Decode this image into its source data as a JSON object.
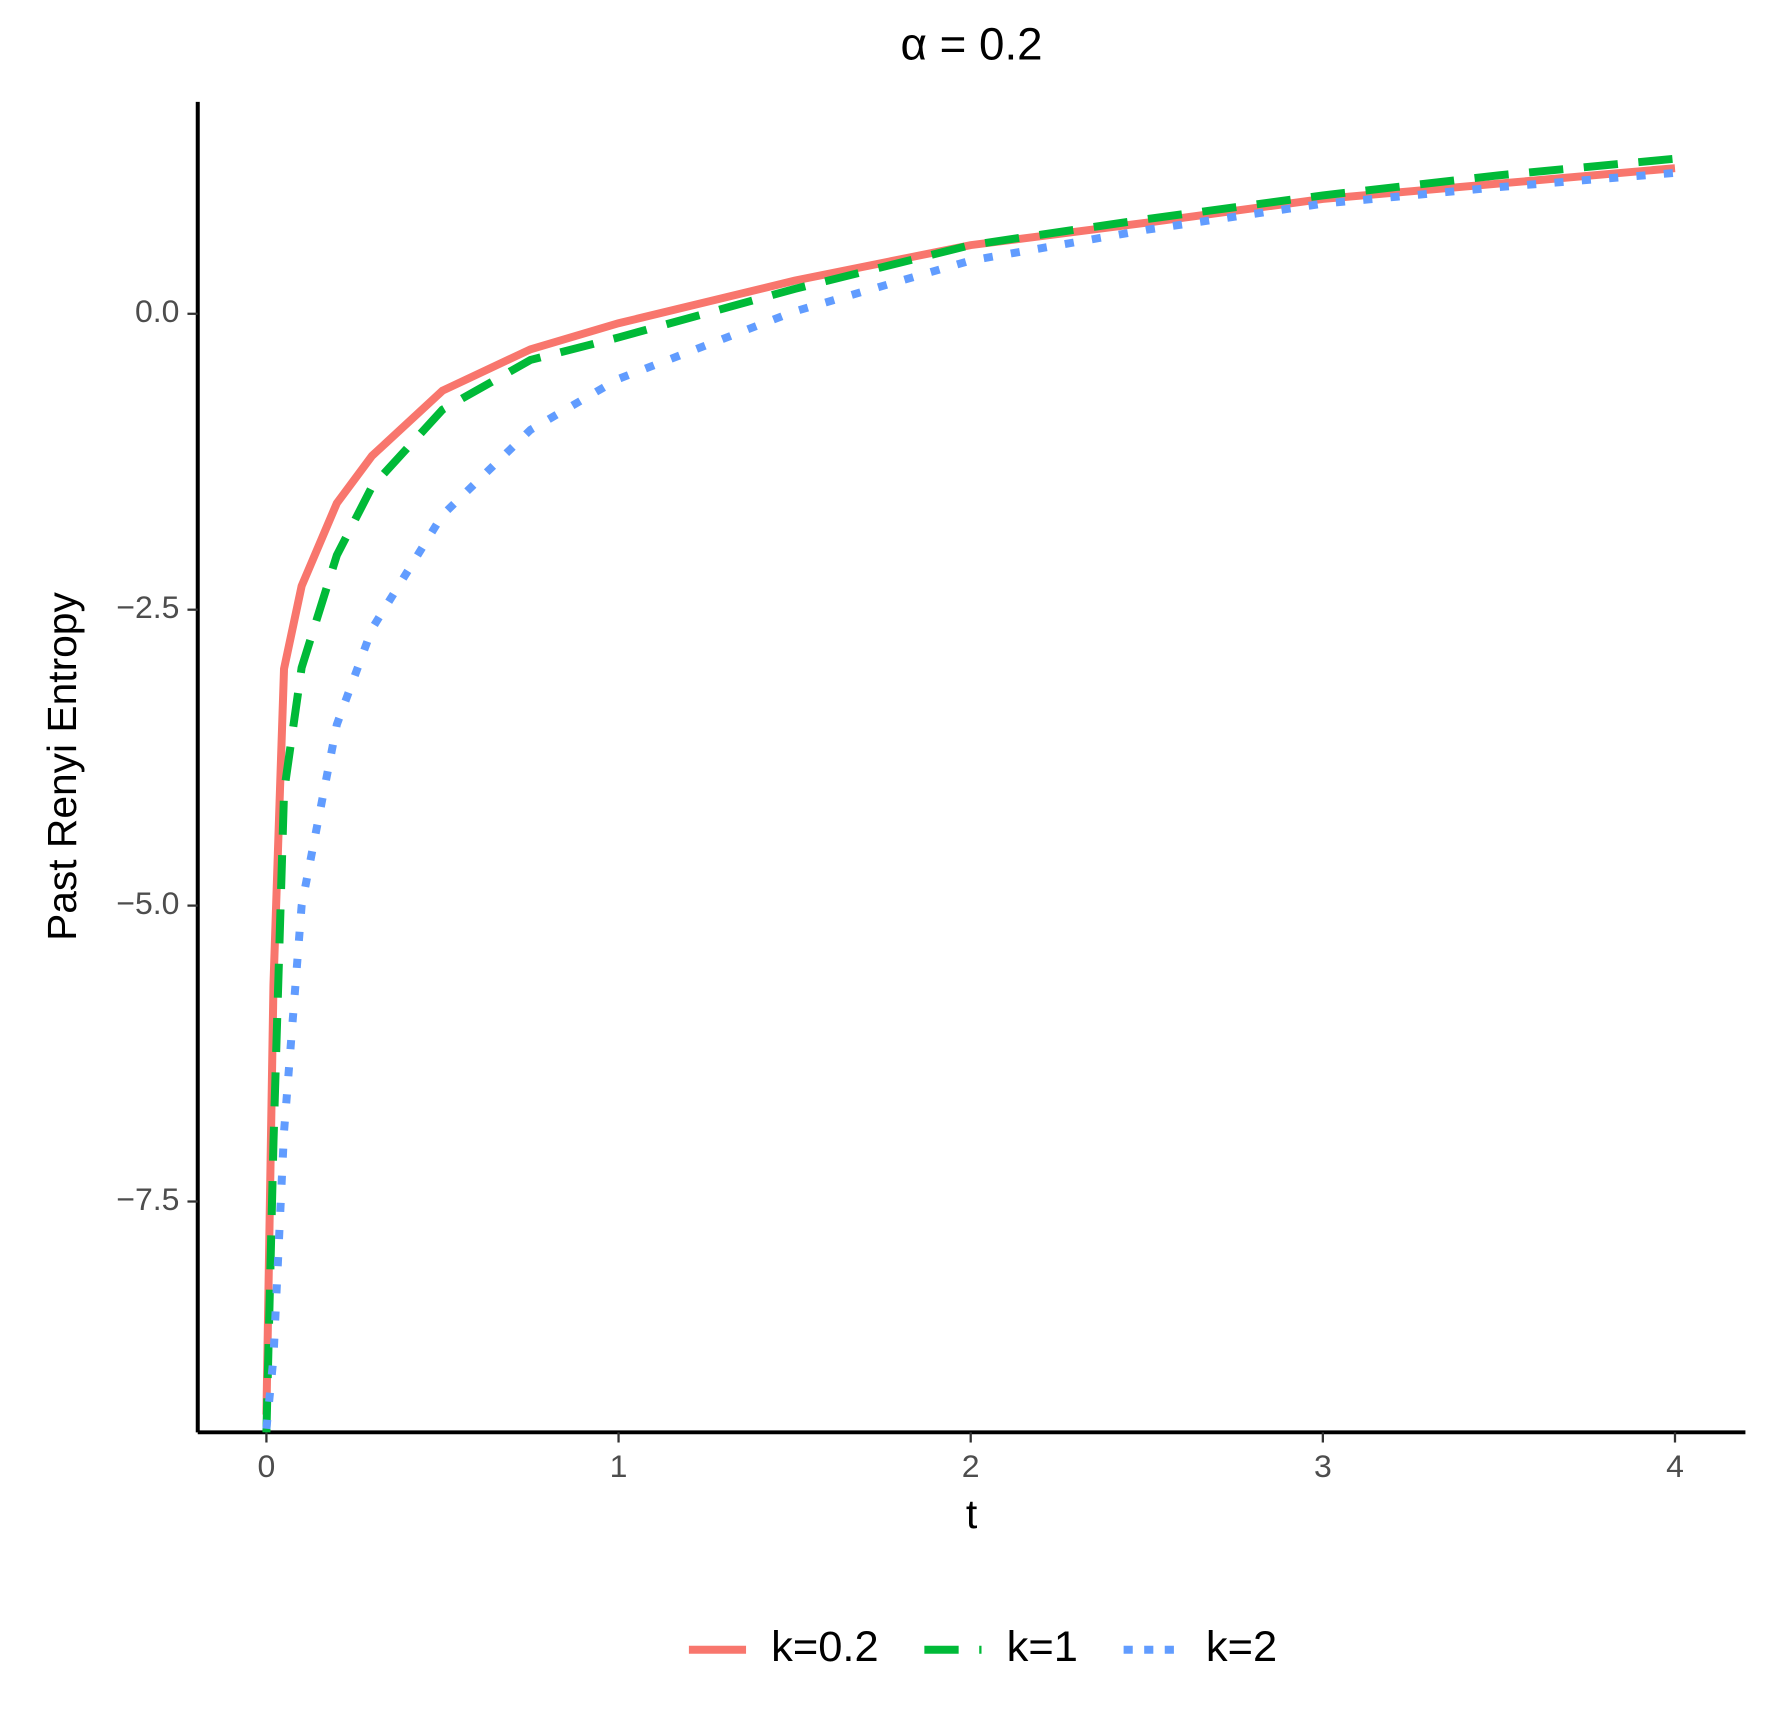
{
  "chart_data": {
    "type": "line",
    "title": "α = 0.2",
    "x_label": "t",
    "y_label": "Past Renyi Entropy",
    "x": [
      0,
      0.02,
      0.05,
      0.1,
      0.2,
      0.3,
      0.5,
      0.75,
      1,
      1.5,
      2,
      2.5,
      3,
      3.5,
      4
    ],
    "series": [
      {
        "name": "k=0.2",
        "color": "#f8766d",
        "dash": "solid",
        "values": [
          -9.3,
          -5.67,
          -3.0,
          -2.3,
          -1.6,
          -1.2,
          -0.65,
          -0.3,
          -0.08,
          0.28,
          0.58,
          0.77,
          0.97,
          1.1,
          1.23
        ]
      },
      {
        "name": "k=1",
        "color": "#00ba38",
        "dash": "dashed",
        "values": [
          -9.45,
          -7.0,
          -4.04,
          -2.99,
          -2.04,
          -1.46,
          -0.81,
          -0.39,
          -0.2,
          0.21,
          0.58,
          0.8,
          1.0,
          1.17,
          1.31
        ]
      },
      {
        "name": "k=2",
        "color": "#619cff",
        "dash": "dotted",
        "values": [
          -9.42,
          -8.82,
          -6.91,
          -5.0,
          -3.47,
          -2.66,
          -1.7,
          -0.98,
          -0.55,
          0.02,
          0.45,
          0.71,
          0.93,
          1.07,
          1.19
        ]
      }
    ],
    "xlim": [
      -0.195,
      4.2
    ],
    "xticks": [
      0,
      1,
      2,
      3,
      4
    ],
    "ylim": [
      -9.45,
      1.79
    ],
    "yticks": [
      {
        "value": 0,
        "label": "0.0"
      },
      {
        "value": -2.5,
        "label": "−2.5"
      },
      {
        "value": -5,
        "label": "−5.0"
      },
      {
        "value": -7.5,
        "label": "−7.5"
      }
    ],
    "legend": "bottom",
    "grid": false
  }
}
